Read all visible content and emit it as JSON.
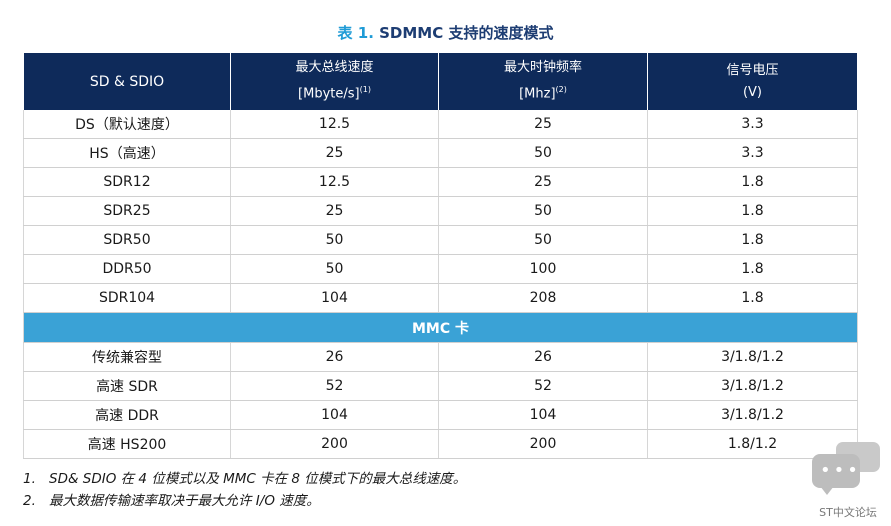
{
  "title": {
    "prefix": "表 1.",
    "text": "SDMMC 支持的速度模式"
  },
  "header": {
    "col1": "SD & SDIO",
    "col2_line1": "最大总线速度",
    "col2_line2": "[Mbyte/s]",
    "col2_sup": "(1)",
    "col3_line1": "最大时钟频率",
    "col3_line2": "[Mhz]",
    "col3_sup": "(2)",
    "col4_line1": "信号电压",
    "col4_line2": "(V)"
  },
  "sd_rows": [
    {
      "mode": "DS（默认速度）",
      "bus": "12.5",
      "clk": "25",
      "volt": "3.3"
    },
    {
      "mode": "HS（高速）",
      "bus": "25",
      "clk": "50",
      "volt": "3.3"
    },
    {
      "mode": "SDR12",
      "bus": "12.5",
      "clk": "25",
      "volt": "1.8"
    },
    {
      "mode": "SDR25",
      "bus": "25",
      "clk": "50",
      "volt": "1.8"
    },
    {
      "mode": "SDR50",
      "bus": "50",
      "clk": "50",
      "volt": "1.8"
    },
    {
      "mode": "DDR50",
      "bus": "50",
      "clk": "100",
      "volt": "1.8"
    },
    {
      "mode": "SDR104",
      "bus": "104",
      "clk": "208",
      "volt": "1.8"
    }
  ],
  "mmc_section": "MMC 卡",
  "mmc_rows": [
    {
      "mode": "传统兼容型",
      "bus": "26",
      "clk": "26",
      "volt": "3/1.8/1.2"
    },
    {
      "mode": "高速 SDR",
      "bus": "52",
      "clk": "52",
      "volt": "3/1.8/1.2"
    },
    {
      "mode": "高速 DDR",
      "bus": "104",
      "clk": "104",
      "volt": "3/1.8/1.2"
    },
    {
      "mode": "高速 HS200",
      "bus": "200",
      "clk": "200",
      "volt": "1.8/1.2"
    }
  ],
  "notes": [
    {
      "idx": "1.",
      "text": "SD& SDIO 在 4 位模式以及 MMC 卡在 8 位模式下的最大总线速度。"
    },
    {
      "idx": "2.",
      "text": "最大数据传输速率取决于最大允许 I/O 速度。"
    }
  ],
  "watermark": {
    "label": "ST中文论坛",
    "icon": "chat-bubbles-icon",
    "color": "#bdbdbd"
  },
  "colors": {
    "header_bg": "#0e2a5a",
    "section_bg": "#3aa2d6",
    "title": "#1d3d73",
    "title_num": "#1f9bd6"
  }
}
